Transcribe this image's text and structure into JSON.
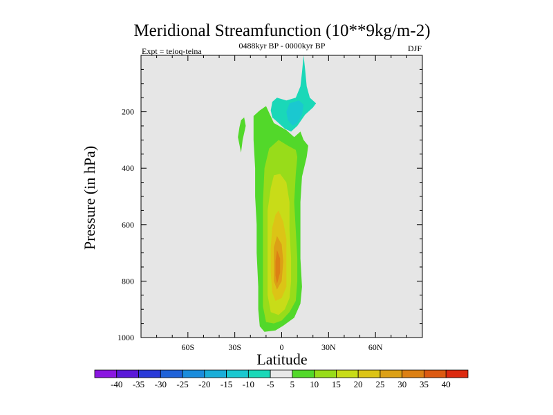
{
  "chart_data": {
    "type": "contour",
    "title": "Meridional Streamfunction (10**9kg/m-2)",
    "subtitle": "0488kyr BP - 0000kyr BP",
    "left_label": "Expt = teioq-teina",
    "right_label": "DJF",
    "xlabel": "Latitude",
    "ylabel": "Pressure (in hPa)",
    "xlim": [
      -90,
      90
    ],
    "ylim": [
      0,
      1000
    ],
    "y_reversed": true,
    "x_ticks": [
      {
        "value": -60,
        "label": "60S"
      },
      {
        "value": -30,
        "label": "30S"
      },
      {
        "value": 0,
        "label": "0"
      },
      {
        "value": 30,
        "label": "30N"
      },
      {
        "value": 60,
        "label": "60N"
      }
    ],
    "y_ticks": [
      {
        "value": 200,
        "label": "200"
      },
      {
        "value": 400,
        "label": "400"
      },
      {
        "value": 600,
        "label": "600"
      },
      {
        "value": 800,
        "label": "800"
      },
      {
        "value": 1000,
        "label": "1000"
      }
    ],
    "colorbar": {
      "levels": [
        -40,
        -35,
        -30,
        -25,
        -20,
        -15,
        -10,
        -5,
        5,
        10,
        15,
        20,
        25,
        30,
        35,
        40
      ],
      "colors": [
        "#8a16e0",
        "#5a18d8",
        "#2a3ad8",
        "#1f62d8",
        "#1a8cdc",
        "#1aaed8",
        "#1ac8d0",
        "#1ad8b8",
        "#e8e8e8",
        "#52d82a",
        "#98dc1a",
        "#c8dc18",
        "#dcc416",
        "#dca016",
        "#dc8014",
        "#dc5a12",
        "#dc2a10"
      ]
    },
    "regions": [
      {
        "level": "5 to 10",
        "color": "#52d82a",
        "points": [
          [
            -18,
            215
          ],
          [
            -14,
            195
          ],
          [
            -10,
            180
          ],
          [
            -5,
            240
          ],
          [
            3,
            265
          ],
          [
            8,
            290
          ],
          [
            12,
            270
          ],
          [
            14,
            300
          ],
          [
            17,
            320
          ],
          [
            16,
            360
          ],
          [
            13,
            430
          ],
          [
            12,
            520
          ],
          [
            12,
            620
          ],
          [
            12,
            720
          ],
          [
            13,
            820
          ],
          [
            12,
            880
          ],
          [
            8,
            930
          ],
          [
            1,
            958
          ],
          [
            -4,
            975
          ],
          [
            -11,
            980
          ],
          [
            -14,
            960
          ],
          [
            -15,
            900
          ],
          [
            -15,
            820
          ],
          [
            -16,
            700
          ],
          [
            -16,
            600
          ],
          [
            -17,
            500
          ],
          [
            -17,
            400
          ],
          [
            -18,
            300
          ]
        ]
      },
      {
        "level": "5 to 10",
        "color": "#52d82a",
        "points": [
          [
            -26,
            230
          ],
          [
            -24,
            220
          ],
          [
            -23,
            250
          ],
          [
            -25,
            300
          ],
          [
            -26,
            345
          ],
          [
            -28,
            290
          ],
          [
            -27,
            255
          ]
        ]
      },
      {
        "level": "10 to 15",
        "color": "#98dc1a",
        "points": [
          [
            -2,
            300
          ],
          [
            4,
            320
          ],
          [
            9,
            335
          ],
          [
            10,
            360
          ],
          [
            9,
            420
          ],
          [
            8,
            520
          ],
          [
            9,
            620
          ],
          [
            10,
            720
          ],
          [
            10,
            800
          ],
          [
            9,
            870
          ],
          [
            5,
            910
          ],
          [
            0,
            940
          ],
          [
            -5,
            950
          ],
          [
            -10,
            945
          ],
          [
            -12,
            890
          ],
          [
            -12,
            780
          ],
          [
            -12,
            650
          ],
          [
            -12,
            520
          ],
          [
            -11,
            400
          ],
          [
            -8,
            330
          ]
        ]
      },
      {
        "level": "15 to 20",
        "color": "#c8dc18",
        "points": [
          [
            -1,
            420
          ],
          [
            3,
            450
          ],
          [
            5,
            520
          ],
          [
            5,
            620
          ],
          [
            6,
            720
          ],
          [
            6,
            800
          ],
          [
            5,
            860
          ],
          [
            2,
            900
          ],
          [
            -2,
            920
          ],
          [
            -7,
            910
          ],
          [
            -9,
            850
          ],
          [
            -9,
            750
          ],
          [
            -9,
            650
          ],
          [
            -9,
            550
          ],
          [
            -7,
            470
          ],
          [
            -5,
            425
          ]
        ]
      },
      {
        "level": "20 to 25",
        "color": "#dcc416",
        "points": [
          [
            -2,
            550
          ],
          [
            1,
            590
          ],
          [
            3,
            650
          ],
          [
            3,
            740
          ],
          [
            3,
            820
          ],
          [
            0,
            860
          ],
          [
            -4,
            870
          ],
          [
            -6,
            840
          ],
          [
            -7,
            770
          ],
          [
            -7,
            680
          ],
          [
            -6,
            610
          ],
          [
            -4,
            565
          ]
        ]
      },
      {
        "level": "25 to 30",
        "color": "#dca016",
        "points": [
          [
            -3,
            640
          ],
          [
            0,
            670
          ],
          [
            1,
            730
          ],
          [
            0,
            800
          ],
          [
            -3,
            830
          ],
          [
            -5,
            800
          ],
          [
            -5,
            740
          ],
          [
            -5,
            680
          ]
        ]
      },
      {
        "level": "30 to 35",
        "color": "#dc8014",
        "points": [
          [
            -3,
            690
          ],
          [
            -1,
            720
          ],
          [
            -1,
            770
          ],
          [
            -3,
            810
          ],
          [
            -4,
            780
          ],
          [
            -4,
            730
          ]
        ]
      },
      {
        "level": "-10 to -5",
        "color": "#1ad8b8",
        "points": [
          [
            14,
            0
          ],
          [
            15,
            50
          ],
          [
            16,
            110
          ],
          [
            18,
            150
          ],
          [
            22,
            170
          ],
          [
            20,
            185
          ],
          [
            15,
            210
          ],
          [
            10,
            250
          ],
          [
            6,
            270
          ],
          [
            2,
            260
          ],
          [
            -2,
            240
          ],
          [
            -6,
            220
          ],
          [
            -7,
            195
          ],
          [
            -6,
            165
          ],
          [
            -3,
            150
          ],
          [
            3,
            160
          ],
          [
            9,
            150
          ],
          [
            12,
            110
          ],
          [
            13,
            60
          ]
        ]
      },
      {
        "level": "-15 to -10",
        "color": "#1ac8d0",
        "points": [
          [
            5,
            170
          ],
          [
            11,
            160
          ],
          [
            14,
            175
          ],
          [
            13,
            210
          ],
          [
            10,
            240
          ],
          [
            7,
            250
          ],
          [
            4,
            230
          ],
          [
            3,
            200
          ]
        ]
      }
    ]
  }
}
